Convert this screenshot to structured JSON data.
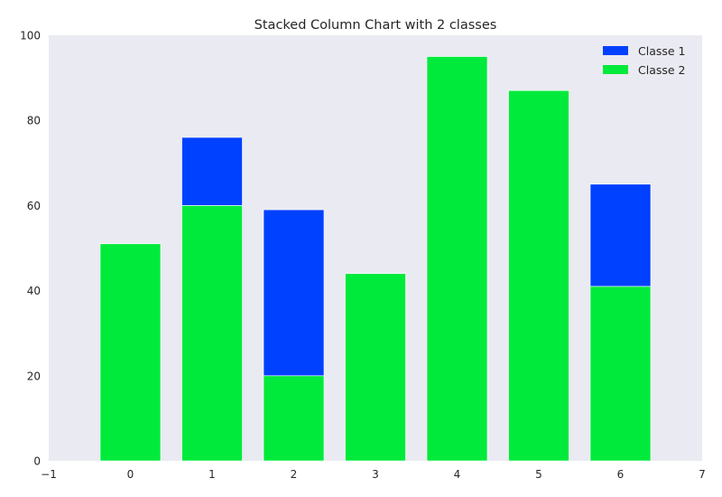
{
  "chart_data": {
    "type": "bar",
    "stacked": true,
    "title": "Stacked Column Chart with 2 classes",
    "xlabel": "",
    "ylabel": "",
    "x": [
      0,
      1,
      2,
      3,
      4,
      5,
      6
    ],
    "series": [
      {
        "name": "Classe 2",
        "values": [
          51,
          60,
          20,
          44,
          95,
          87,
          41
        ],
        "color": "#00ea3c"
      },
      {
        "name": "Classe 1",
        "values": [
          0,
          16,
          39,
          0,
          0,
          0,
          24
        ],
        "color": "#0040ff"
      }
    ],
    "legend_order": [
      "Classe 1",
      "Classe 2"
    ],
    "xlim": [
      -1,
      7
    ],
    "ylim": [
      0,
      100
    ],
    "xticks": [
      -1,
      0,
      1,
      2,
      3,
      4,
      5,
      6,
      7
    ],
    "yticks": [
      0,
      20,
      40,
      60,
      80,
      100
    ],
    "grid": false,
    "legend_position": "top-right",
    "plot_background": "#eaeaf2"
  }
}
